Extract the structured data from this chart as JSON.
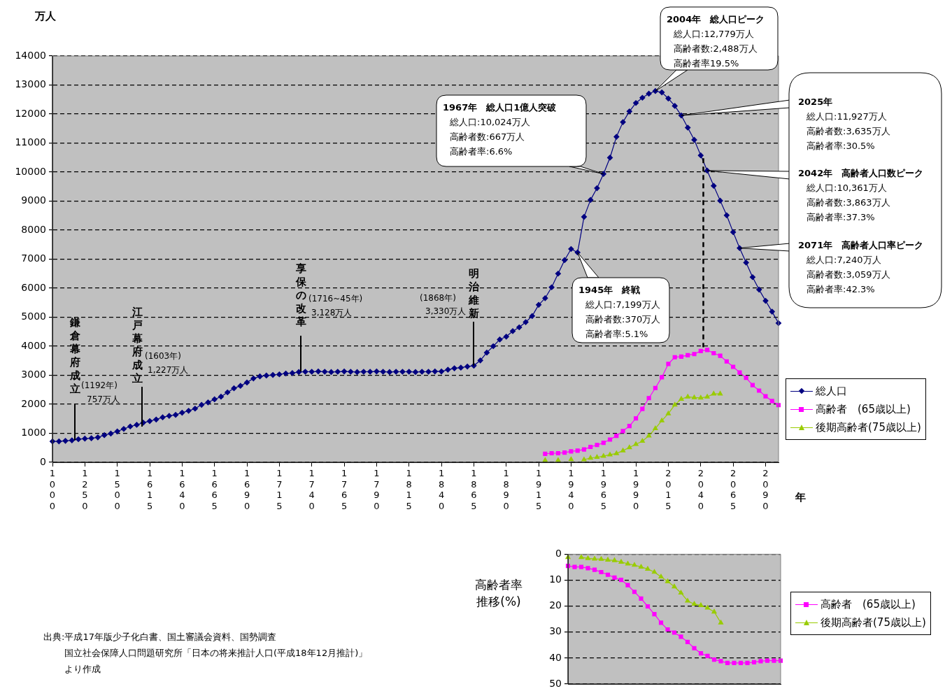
{
  "chart_data": [
    {
      "type": "line",
      "ylabel": "万人",
      "xlabel": "年",
      "categories": [
        "1000",
        null,
        null,
        null,
        null,
        "1250",
        null,
        null,
        null,
        null,
        "1500",
        null,
        null,
        null,
        null,
        "1615",
        null,
        null,
        null,
        null,
        "1640",
        null,
        null,
        null,
        null,
        "1665",
        null,
        null,
        null,
        null,
        "1690",
        null,
        null,
        null,
        null,
        "1715",
        null,
        null,
        null,
        null,
        "1740",
        null,
        null,
        null,
        null,
        "1765",
        null,
        null,
        null,
        null,
        "1790",
        null,
        null,
        null,
        null,
        "1815",
        null,
        null,
        null,
        null,
        "1840",
        null,
        null,
        null,
        null,
        "1865",
        null,
        null,
        null,
        null,
        "1890",
        null,
        null,
        null,
        null,
        "1915",
        null,
        null,
        null,
        null,
        "1940",
        null,
        null,
        null,
        null,
        "1965",
        null,
        null,
        null,
        null,
        "1990",
        null,
        null,
        null,
        null,
        "2015",
        null,
        null,
        null,
        null,
        "2040",
        null,
        null,
        null,
        null,
        "2065",
        null,
        null,
        null,
        null,
        "2090",
        null,
        null
      ],
      "series": [
        {
          "name": "総人口",
          "color": "#000080",
          "marker": "diamond",
          "values": [
            720,
            720,
            740,
            757,
            795,
            815,
            830,
            860,
            935,
            990,
            1065,
            1150,
            1235,
            1290,
            1365,
            1420,
            1475,
            1550,
            1600,
            1635,
            1710,
            1775,
            1850,
            1980,
            2065,
            2170,
            2260,
            2410,
            2550,
            2635,
            2750,
            2890,
            2960,
            2990,
            3010,
            3030,
            3060,
            3075,
            3110,
            3120,
            3120,
            3130,
            3120,
            3110,
            3120,
            3130,
            3120,
            3110,
            3120,
            3120,
            3130,
            3120,
            3110,
            3120,
            3120,
            3120,
            3110,
            3120,
            3120,
            3130,
            3130,
            3190,
            3240,
            3260,
            3300,
            3330,
            3510,
            3780,
            4000,
            4230,
            4330,
            4520,
            4650,
            4830,
            5040,
            5425,
            5655,
            6030,
            6500,
            6965,
            7350,
            7230,
            8455,
            9040,
            9445,
            9935,
            10495,
            11215,
            11720,
            12090,
            12380,
            12560,
            12700,
            12790,
            12745,
            12535,
            12280,
            11950,
            11530,
            11110,
            10575,
            10050,
            9525,
            9015,
            8510,
            7930,
            7380,
            6880,
            6380,
            5950,
            5565,
            5190,
            4795
          ]
        },
        {
          "name": "高齢者　(65歳以上)",
          "color": "#ff00ff",
          "marker": "square",
          "values": [
            null,
            null,
            null,
            null,
            null,
            null,
            null,
            null,
            null,
            null,
            null,
            null,
            null,
            null,
            null,
            null,
            null,
            null,
            null,
            null,
            null,
            null,
            null,
            null,
            null,
            null,
            null,
            null,
            null,
            null,
            null,
            null,
            null,
            null,
            null,
            null,
            null,
            null,
            null,
            null,
            null,
            null,
            null,
            null,
            null,
            null,
            null,
            null,
            null,
            null,
            null,
            null,
            null,
            null,
            null,
            null,
            null,
            null,
            null,
            null,
            null,
            null,
            null,
            null,
            null,
            null,
            null,
            null,
            null,
            null,
            null,
            null,
            null,
            null,
            null,
            null,
            291,
            313,
            313,
            335,
            378,
            400,
            444,
            531,
            597,
            673,
            782,
            913,
            1076,
            1250,
            1513,
            1840,
            2210,
            2560,
            2930,
            3390,
            3620,
            3640,
            3690,
            3730,
            3835,
            3870,
            3760,
            3670,
            3475,
            3290,
            3095,
            2910,
            2660,
            2470,
            2275,
            2110,
            1970
          ]
        },
        {
          "name": "後期高齢者(75歳以上)",
          "color": "#99cc00",
          "marker": "triangle",
          "values": [
            null,
            null,
            null,
            null,
            null,
            null,
            null,
            null,
            null,
            null,
            null,
            null,
            null,
            null,
            null,
            null,
            null,
            null,
            null,
            null,
            null,
            null,
            null,
            null,
            null,
            null,
            null,
            null,
            null,
            null,
            null,
            null,
            null,
            null,
            null,
            null,
            null,
            null,
            null,
            null,
            null,
            null,
            null,
            null,
            null,
            null,
            null,
            null,
            null,
            null,
            null,
            null,
            null,
            null,
            null,
            null,
            null,
            null,
            null,
            null,
            null,
            null,
            null,
            null,
            null,
            null,
            null,
            null,
            null,
            null,
            null,
            null,
            null,
            null,
            null,
            null,
            70,
            null,
            70,
            null,
            100,
            null,
            90,
            150,
            175,
            215,
            260,
            305,
            400,
            510,
            620,
            730,
            913,
            1164,
            1435,
            1676,
            1980,
            2180,
            2255,
            2230,
            2220,
            2255,
            2360,
            2360,
            null,
            null,
            null,
            null,
            null,
            null,
            null,
            null,
            null
          ]
        }
      ],
      "ylim": [
        0,
        14000
      ],
      "yticks": [
        0,
        1000,
        2000,
        3000,
        4000,
        5000,
        6000,
        7000,
        8000,
        9000,
        10000,
        11000,
        12000,
        13000,
        14000
      ],
      "grid": "y",
      "legend": "right",
      "annotations": [
        {
          "text": "鎌倉幕府成立",
          "y": 757
        },
        "(1192年)",
        "757万人",
        {
          "text": "江戸幕府成立",
          "y": 1227
        },
        "(1603年)",
        "1,227万人",
        {
          "text": "享保の改革",
          "y": 3128
        },
        "(1716~45年)",
        "3,128万人",
        "(1868年)",
        "3,330万人",
        {
          "text": "明治維新",
          "y": 3330
        },
        "1967年　総人口1億人突破",
        "総人口:10,024万人",
        "高齢者数:667万人",
        "高齢者率:6.6%",
        "1945年　終戦",
        "総人口:7,199万人",
        "高齢者数:370万人",
        "高齢者率:5.1%",
        "2004年　総人口ピーク",
        "総人口:12,779万人",
        "高齢者数:2,488万人",
        "高齢者率19.5%",
        "2025年",
        "総人口:11,927万人",
        "高齢者数:3,635万人",
        "高齢者率:30.5%",
        "2042年　高齢者人口数ピーク",
        "総人口:10,361万人",
        "高齢者数:3,863万人",
        "高齢者率:37.3%",
        "2071年　高齢者人口率ピーク",
        "総人口:7,240万人",
        "高齢者数:3,059万人",
        "高齢者率:42.3%",
        "出典:平成17年版少子化白書、国土審議会資料、国勢調査",
        "国立社会保障人口問題研究所「日本の将来推計人口(平成18年12月推計)」",
        "より作成"
      ]
    },
    {
      "type": "line",
      "ylabel": "高齢者率推移(%)",
      "categories": [
        null,
        null,
        null,
        null,
        null,
        null,
        null,
        null,
        null,
        null,
        null,
        null,
        null,
        null,
        null,
        null,
        null,
        null,
        null,
        null,
        null,
        null,
        null,
        null,
        null,
        null,
        null,
        null,
        null,
        null,
        null,
        null,
        null
      ],
      "series": [
        {
          "name": "高齢者　(65歳以上)",
          "color": "#ff00ff",
          "marker": "square",
          "values": [
            4.5,
            4.9,
            4.9,
            5.4,
            6.0,
            6.9,
            7.9,
            9.0,
            9.9,
            11.9,
            14.5,
            17.1,
            20.1,
            23.1,
            26.4,
            29.0,
            30.2,
            31.8,
            33.8,
            36.2,
            38.2,
            39.2,
            40.6,
            41.2,
            41.9,
            41.9,
            41.9,
            41.9,
            41.6,
            41.2,
            41.0,
            41.0,
            41.0
          ]
        },
        {
          "name": "後期高齢者(75歳以上)",
          "color": "#99cc00",
          "marker": "triangle",
          "values": [
            1.2,
            null,
            1.2,
            1.6,
            1.8,
            1.9,
            2.2,
            2.4,
            3.0,
            3.7,
            4.2,
            4.9,
            5.7,
            6.9,
            8.7,
            10.5,
            12.5,
            14.9,
            18.0,
            19.2,
            19.7,
            20.7,
            22.2,
            26.4,
            null,
            null,
            null,
            null,
            null,
            null,
            null,
            null,
            null
          ]
        }
      ],
      "ylim": [
        50,
        0
      ],
      "yticks": [
        0,
        10,
        20,
        30,
        40,
        50
      ],
      "grid": "y",
      "legend": "right",
      "tick_labels": "y"
    }
  ]
}
